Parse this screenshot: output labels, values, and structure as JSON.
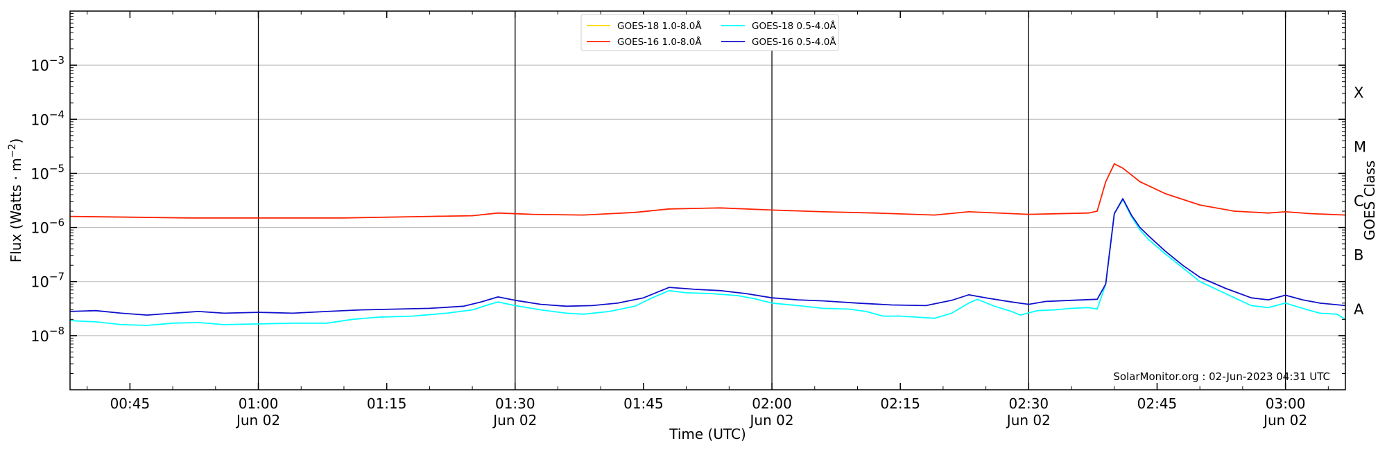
{
  "chart_data": {
    "type": "line",
    "xlabel": "Time (UTC)",
    "ylabel": "Flux (Watts · m⁻²)",
    "ylabel_right": "GOES Class",
    "y_scale": "log",
    "ylim": [
      1e-09,
      0.01
    ],
    "xlim": [
      "00:38",
      "03:07"
    ],
    "grid": "horizontal major lines",
    "legend_position": "top-center",
    "credit": "SolarMonitor.org : 02-Jun-2023 04:31 UTC",
    "y_ticks": [
      {
        "base": "10",
        "exp": "−8",
        "value": 1e-08
      },
      {
        "base": "10",
        "exp": "−7",
        "value": 1e-07
      },
      {
        "base": "10",
        "exp": "−6",
        "value": 1e-06
      },
      {
        "base": "10",
        "exp": "−5",
        "value": 1e-05
      },
      {
        "base": "10",
        "exp": "−4",
        "value": 0.0001
      },
      {
        "base": "10",
        "exp": "−3",
        "value": 0.001
      }
    ],
    "x_ticks": [
      {
        "time": "00:45",
        "date": ""
      },
      {
        "time": "01:00",
        "date": "Jun 02"
      },
      {
        "time": "01:15",
        "date": ""
      },
      {
        "time": "01:30",
        "date": "Jun 02"
      },
      {
        "time": "01:45",
        "date": ""
      },
      {
        "time": "02:00",
        "date": "Jun 02"
      },
      {
        "time": "02:15",
        "date": ""
      },
      {
        "time": "02:30",
        "date": "Jun 02"
      },
      {
        "time": "02:45",
        "date": ""
      },
      {
        "time": "03:00",
        "date": "Jun 02"
      }
    ],
    "class_labels": [
      {
        "label": "A",
        "value": 3.16e-08
      },
      {
        "label": "B",
        "value": 3.16e-07
      },
      {
        "label": "C",
        "value": 3.16e-06
      },
      {
        "label": "M",
        "value": 3.16e-05
      },
      {
        "label": "X",
        "value": 0.000316
      }
    ],
    "series": [
      {
        "name": "GOES-18 1.0-8.0Å",
        "color": "#ffd700",
        "points": []
      },
      {
        "name": "GOES-18 0.5-4.0Å",
        "color": "#00ffff",
        "points": [
          [
            "00:38",
            1.9e-08
          ],
          [
            "00:41",
            1.8e-08
          ],
          [
            "00:44",
            1.6e-08
          ],
          [
            "00:47",
            1.55e-08
          ],
          [
            "00:50",
            1.7e-08
          ],
          [
            "00:53",
            1.75e-08
          ],
          [
            "00:56",
            1.6e-08
          ],
          [
            "01:00",
            1.65e-08
          ],
          [
            "01:04",
            1.7e-08
          ],
          [
            "01:08",
            1.7e-08
          ],
          [
            "01:11",
            2e-08
          ],
          [
            "01:14",
            2.2e-08
          ],
          [
            "01:18",
            2.3e-08
          ],
          [
            "01:22",
            2.6e-08
          ],
          [
            "01:25",
            3e-08
          ],
          [
            "01:27",
            3.8e-08
          ],
          [
            "01:28",
            4.2e-08
          ],
          [
            "01:30",
            3.6e-08
          ],
          [
            "01:33",
            3e-08
          ],
          [
            "01:36",
            2.6e-08
          ],
          [
            "01:38",
            2.5e-08
          ],
          [
            "01:41",
            2.8e-08
          ],
          [
            "01:44",
            3.5e-08
          ],
          [
            "01:46",
            5e-08
          ],
          [
            "01:48",
            6.8e-08
          ],
          [
            "01:50",
            6.2e-08
          ],
          [
            "01:53",
            6e-08
          ],
          [
            "01:56",
            5.5e-08
          ],
          [
            "01:58",
            4.8e-08
          ],
          [
            "02:00",
            4e-08
          ],
          [
            "02:03",
            3.6e-08
          ],
          [
            "02:06",
            3.2e-08
          ],
          [
            "02:09",
            3.1e-08
          ],
          [
            "02:11",
            2.8e-08
          ],
          [
            "02:13",
            2.3e-08
          ],
          [
            "02:15",
            2.3e-08
          ],
          [
            "02:17",
            2.2e-08
          ],
          [
            "02:19",
            2.1e-08
          ],
          [
            "02:21",
            2.6e-08
          ],
          [
            "02:23",
            4e-08
          ],
          [
            "02:24",
            4.7e-08
          ],
          [
            "02:26",
            3.5e-08
          ],
          [
            "02:28",
            2.8e-08
          ],
          [
            "02:29",
            2.4e-08
          ],
          [
            "02:31",
            2.9e-08
          ],
          [
            "02:33",
            3e-08
          ],
          [
            "02:35",
            3.2e-08
          ],
          [
            "02:37",
            3.3e-08
          ],
          [
            "02:38",
            3.1e-08
          ],
          [
            "02:39",
            9e-08
          ],
          [
            "02:40",
            1.8e-06
          ],
          [
            "02:41",
            3.3e-06
          ],
          [
            "02:42",
            1.6e-06
          ],
          [
            "02:43",
            9e-07
          ],
          [
            "02:44",
            6e-07
          ],
          [
            "02:46",
            3.2e-07
          ],
          [
            "02:48",
            1.8e-07
          ],
          [
            "02:50",
            1e-07
          ],
          [
            "02:53",
            6e-08
          ],
          [
            "02:56",
            3.6e-08
          ],
          [
            "02:58",
            3.3e-08
          ],
          [
            "03:00",
            4e-08
          ],
          [
            "03:02",
            3.2e-08
          ],
          [
            "03:04",
            2.6e-08
          ],
          [
            "03:06",
            2.5e-08
          ],
          [
            "03:07",
            2e-08
          ]
        ]
      },
      {
        "name": "GOES-16 1.0-8.0Å",
        "color": "#ff2200",
        "points": [
          [
            "00:38",
            1.6e-06
          ],
          [
            "00:45",
            1.55e-06
          ],
          [
            "00:52",
            1.5e-06
          ],
          [
            "01:00",
            1.5e-06
          ],
          [
            "01:10",
            1.5e-06
          ],
          [
            "01:20",
            1.6e-06
          ],
          [
            "01:25",
            1.65e-06
          ],
          [
            "01:28",
            1.85e-06
          ],
          [
            "01:32",
            1.75e-06
          ],
          [
            "01:38",
            1.7e-06
          ],
          [
            "01:44",
            1.9e-06
          ],
          [
            "01:48",
            2.2e-06
          ],
          [
            "01:54",
            2.3e-06
          ],
          [
            "02:00",
            2.1e-06
          ],
          [
            "02:06",
            1.95e-06
          ],
          [
            "02:12",
            1.85e-06
          ],
          [
            "02:19",
            1.7e-06
          ],
          [
            "02:23",
            1.95e-06
          ],
          [
            "02:30",
            1.75e-06
          ],
          [
            "02:37",
            1.85e-06
          ],
          [
            "02:38",
            2e-06
          ],
          [
            "02:39",
            7e-06
          ],
          [
            "02:40",
            1.5e-05
          ],
          [
            "02:41",
            1.25e-05
          ],
          [
            "02:43",
            7e-06
          ],
          [
            "02:46",
            4.2e-06
          ],
          [
            "02:50",
            2.6e-06
          ],
          [
            "02:54",
            2e-06
          ],
          [
            "02:58",
            1.85e-06
          ],
          [
            "03:00",
            1.95e-06
          ],
          [
            "03:03",
            1.8e-06
          ],
          [
            "03:07",
            1.7e-06
          ]
        ]
      },
      {
        "name": "GOES-16 0.5-4.0Å",
        "color": "#1010cc",
        "points": [
          [
            "00:38",
            2.8e-08
          ],
          [
            "00:41",
            2.9e-08
          ],
          [
            "00:44",
            2.6e-08
          ],
          [
            "00:47",
            2.4e-08
          ],
          [
            "00:50",
            2.6e-08
          ],
          [
            "00:53",
            2.8e-08
          ],
          [
            "00:56",
            2.6e-08
          ],
          [
            "01:00",
            2.7e-08
          ],
          [
            "01:04",
            2.6e-08
          ],
          [
            "01:08",
            2.8e-08
          ],
          [
            "01:12",
            3e-08
          ],
          [
            "01:16",
            3.1e-08
          ],
          [
            "01:20",
            3.2e-08
          ],
          [
            "01:24",
            3.5e-08
          ],
          [
            "01:26",
            4.2e-08
          ],
          [
            "01:28",
            5.2e-08
          ],
          [
            "01:30",
            4.5e-08
          ],
          [
            "01:33",
            3.8e-08
          ],
          [
            "01:36",
            3.5e-08
          ],
          [
            "01:39",
            3.6e-08
          ],
          [
            "01:42",
            4e-08
          ],
          [
            "01:45",
            5e-08
          ],
          [
            "01:48",
            7.8e-08
          ],
          [
            "01:51",
            7.2e-08
          ],
          [
            "01:54",
            6.8e-08
          ],
          [
            "01:57",
            6e-08
          ],
          [
            "02:00",
            5e-08
          ],
          [
            "02:03",
            4.6e-08
          ],
          [
            "02:06",
            4.4e-08
          ],
          [
            "02:10",
            4e-08
          ],
          [
            "02:14",
            3.7e-08
          ],
          [
            "02:18",
            3.6e-08
          ],
          [
            "02:21",
            4.5e-08
          ],
          [
            "02:23",
            5.7e-08
          ],
          [
            "02:25",
            5e-08
          ],
          [
            "02:28",
            4.2e-08
          ],
          [
            "02:30",
            3.8e-08
          ],
          [
            "02:32",
            4.3e-08
          ],
          [
            "02:35",
            4.5e-08
          ],
          [
            "02:38",
            4.7e-08
          ],
          [
            "02:39",
            9e-08
          ],
          [
            "02:40",
            1.8e-06
          ],
          [
            "02:41",
            3.4e-06
          ],
          [
            "02:42",
            1.7e-06
          ],
          [
            "02:43",
            1e-06
          ],
          [
            "02:44",
            7e-07
          ],
          [
            "02:46",
            3.6e-07
          ],
          [
            "02:48",
            2e-07
          ],
          [
            "02:50",
            1.2e-07
          ],
          [
            "02:53",
            7.5e-08
          ],
          [
            "02:56",
            5e-08
          ],
          [
            "02:58",
            4.6e-08
          ],
          [
            "03:00",
            5.6e-08
          ],
          [
            "03:02",
            4.6e-08
          ],
          [
            "03:04",
            4e-08
          ],
          [
            "03:07",
            3.6e-08
          ]
        ]
      }
    ]
  }
}
